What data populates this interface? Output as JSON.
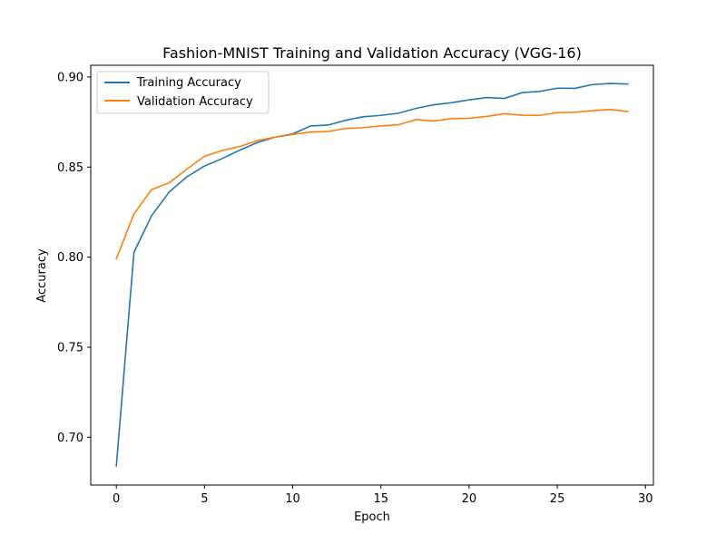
{
  "chart_data": {
    "type": "line",
    "title": "Fashion-MNIST Training and Validation Accuracy (VGG-16)",
    "xlabel": "Epoch",
    "ylabel": "Accuracy",
    "xlim": [
      -1.45,
      30.45
    ],
    "ylim": [
      0.6735,
      0.9065
    ],
    "xticks": [
      0,
      5,
      10,
      15,
      20,
      25,
      30
    ],
    "xtick_labels": [
      "0",
      "5",
      "10",
      "15",
      "20",
      "25",
      "30"
    ],
    "yticks": [
      0.7,
      0.75,
      0.8,
      0.85,
      0.9
    ],
    "ytick_labels": [
      "0.70",
      "0.75",
      "0.80",
      "0.85",
      "0.90"
    ],
    "grid": false,
    "legend_position": "upper-left",
    "x": [
      0,
      1,
      2,
      3,
      4,
      5,
      6,
      7,
      8,
      9,
      10,
      11,
      12,
      13,
      14,
      15,
      16,
      17,
      18,
      19,
      20,
      21,
      22,
      23,
      24,
      25,
      26,
      27,
      28,
      29
    ],
    "series": [
      {
        "name": "Training Accuracy",
        "color": "#1f77b4",
        "values": [
          0.684,
          0.8027,
          0.823,
          0.8362,
          0.8446,
          0.8506,
          0.8547,
          0.8594,
          0.8636,
          0.8666,
          0.8684,
          0.8728,
          0.8733,
          0.876,
          0.8779,
          0.8787,
          0.8799,
          0.8826,
          0.8846,
          0.8857,
          0.8873,
          0.8886,
          0.8881,
          0.8913,
          0.892,
          0.8938,
          0.8937,
          0.8958,
          0.8964,
          0.8961
        ]
      },
      {
        "name": "Validation Accuracy",
        "color": "#ff7f0e",
        "values": [
          0.7991,
          0.824,
          0.8375,
          0.8413,
          0.8488,
          0.856,
          0.8592,
          0.8614,
          0.8647,
          0.8666,
          0.8681,
          0.8694,
          0.8698,
          0.8714,
          0.8719,
          0.8728,
          0.8735,
          0.8764,
          0.8755,
          0.8769,
          0.8771,
          0.8781,
          0.8796,
          0.8788,
          0.8787,
          0.8802,
          0.8804,
          0.8813,
          0.882,
          0.8808
        ]
      }
    ]
  }
}
